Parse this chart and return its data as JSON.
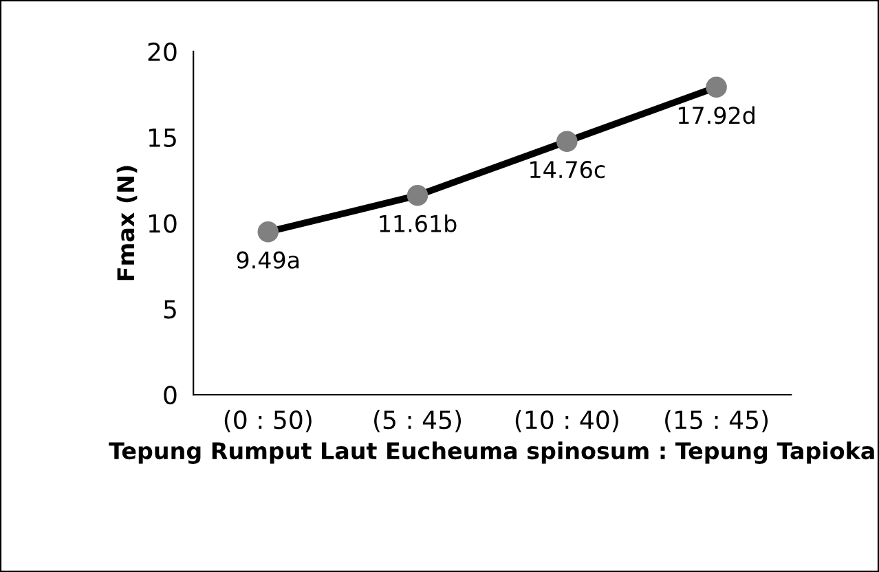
{
  "chart_data": {
    "type": "line",
    "xlabel": "Tepung Rumput Laut Eucheuma spinosum : Tepung Tapioka",
    "ylabel": "Fmax (N)",
    "categories": [
      "(0 : 50)",
      "(5 : 45)",
      "(10 : 40)",
      "(15 : 45)"
    ],
    "series": [
      {
        "color": "#000000",
        "values": [
          9.49,
          11.61,
          14.76,
          17.92
        ],
        "value_labels": [
          "9.49a",
          "11.61b",
          "14.76c",
          "17.92d"
        ]
      }
    ],
    "ylim": [
      0,
      20
    ],
    "yticks": [
      0,
      5,
      10,
      15,
      20
    ],
    "marker": "circle",
    "line_style": "solid"
  }
}
